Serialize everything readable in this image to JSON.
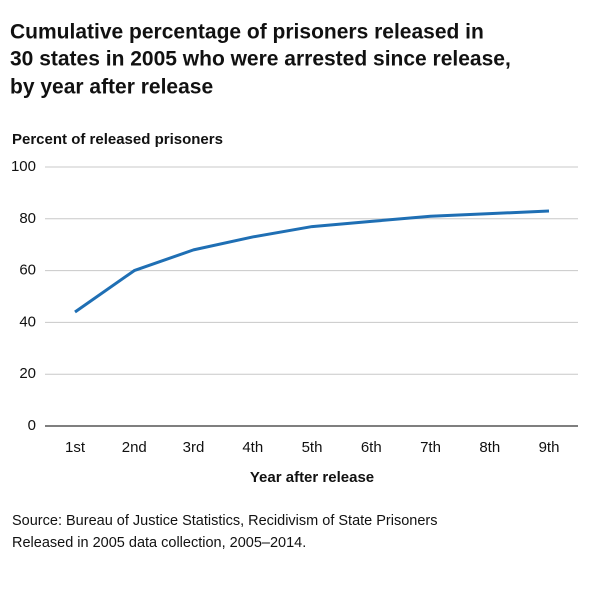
{
  "chart_data": {
    "type": "line",
    "title": [
      "Cumulative percentage of prisoners released in",
      "30 states in 2005 who were arrested since release,",
      "by year after release"
    ],
    "y_label": "Percent of released prisoners",
    "x_label": "Year after release",
    "source": [
      "Source: Bureau of Justice Statistics, Recidivism of State Prisoners",
      "Released in 2005 data collection, 2005–2014."
    ],
    "categories": [
      "1st",
      "2nd",
      "3rd",
      "4th",
      "5th",
      "6th",
      "7th",
      "8th",
      "9th"
    ],
    "values": [
      44,
      60,
      68,
      73,
      77,
      79,
      81,
      82,
      83
    ],
    "color": "#1f6fb4",
    "ylim": [
      0,
      100
    ],
    "yticks": [
      0,
      20,
      40,
      60,
      80,
      100
    ],
    "grid": true
  }
}
